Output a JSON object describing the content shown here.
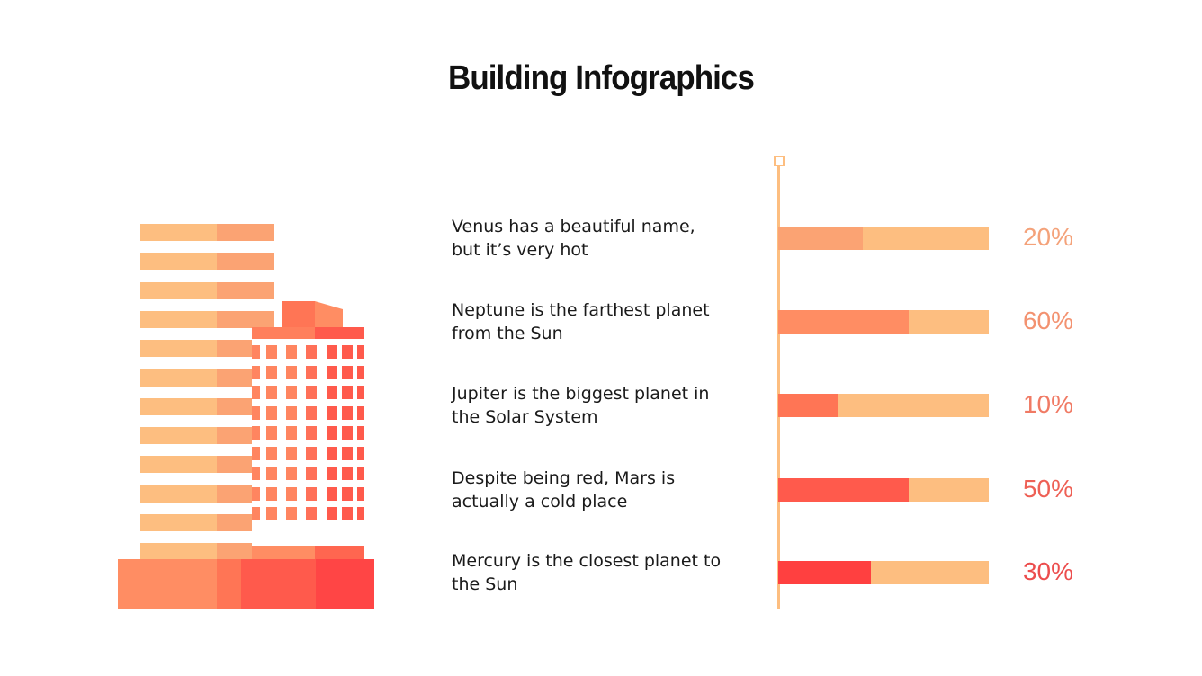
{
  "title": "Building Infographics",
  "colors": {
    "track": "#FDBE80",
    "tower_light": "#FDBE80",
    "tower_dark": "#FBA373"
  },
  "chart_data": {
    "type": "bar",
    "orientation": "horizontal",
    "categories": [
      "Venus has a beautiful name, but it’s very hot",
      "Neptune is the farthest planet from the Sun",
      "Jupiter is the biggest planet in the Solar System",
      "Despite being red, Mars is actually a cold place",
      "Mercury is the closest planet to the Sun"
    ],
    "items": [
      {
        "line1": "Venus has a beautiful name,",
        "line2": "but it’s very hot",
        "label": "20%",
        "fill": 0.4,
        "color": "#FBA373",
        "label_color": "#F4A27A"
      },
      {
        "line1": "Neptune is the farthest planet",
        "line2": "from the Sun",
        "label": "60%",
        "fill": 0.62,
        "color": "#FF8D63",
        "label_color": "#F39270"
      },
      {
        "line1": "Jupiter is the biggest planet in",
        "line2": "the Solar System",
        "label": "10%",
        "fill": 0.28,
        "color": "#FF7555",
        "label_color": "#F07A64"
      },
      {
        "line1": "Despite being red, Mars is",
        "line2": "actually a cold place",
        "label": "50%",
        "fill": 0.62,
        "color": "#FF5A4C",
        "label_color": "#EE6055"
      },
      {
        "line1": "Mercury is the closest planet to",
        "line2": "the Sun",
        "label": "30%",
        "fill": 0.44,
        "color": "#FF4040",
        "label_color": "#EC4D4D"
      }
    ],
    "values": [
      20,
      60,
      10,
      50,
      30
    ],
    "xlim": [
      0,
      100
    ]
  }
}
